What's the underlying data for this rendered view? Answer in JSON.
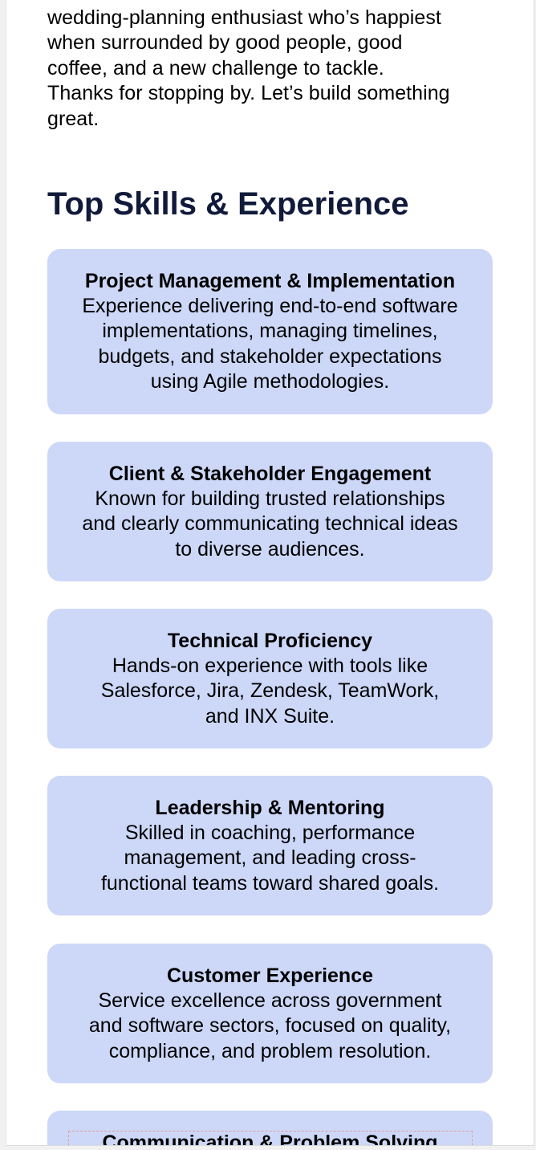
{
  "intro": {
    "lines": [
      "wedding-planning enthusiast who’s happiest",
      "when surrounded by good people, good",
      "coffee, and a new challenge to tackle.",
      "Thanks for stopping by. Let’s build something",
      "great."
    ]
  },
  "skills_section": {
    "title": "Top Skills & Experience",
    "cards": [
      {
        "title": "Project Management & Implementation",
        "description_lines": [
          "Experience delivering end-to-end software",
          "implementations, managing timelines,",
          "budgets, and stakeholder expectations",
          "using Agile methodologies."
        ]
      },
      {
        "title": "Client & Stakeholder Engagement",
        "description_lines": [
          "Known for building trusted relationships",
          "and clearly communicating technical ideas",
          "to diverse audiences."
        ]
      },
      {
        "title": "Technical Proficiency",
        "description_lines": [
          "Hands-on experience with tools like",
          "Salesforce, Jira, Zendesk, TeamWork,",
          "and INX Suite."
        ]
      },
      {
        "title": "Leadership & Mentoring",
        "description_lines": [
          "Skilled in coaching, performance",
          "management, and leading cross-",
          "functional teams toward shared goals."
        ]
      },
      {
        "title": "Customer Experience",
        "description_lines": [
          "Service excellence across government",
          "and software sectors, focused on quality,",
          "compliance, and problem resolution."
        ]
      },
      {
        "title": "Communication & Problem Solving",
        "description_lines": []
      }
    ]
  },
  "colors": {
    "card_background": "#cdd8f8",
    "heading": "#111a3a",
    "text": "#000000",
    "dashed_outline": "#e79a9a"
  }
}
